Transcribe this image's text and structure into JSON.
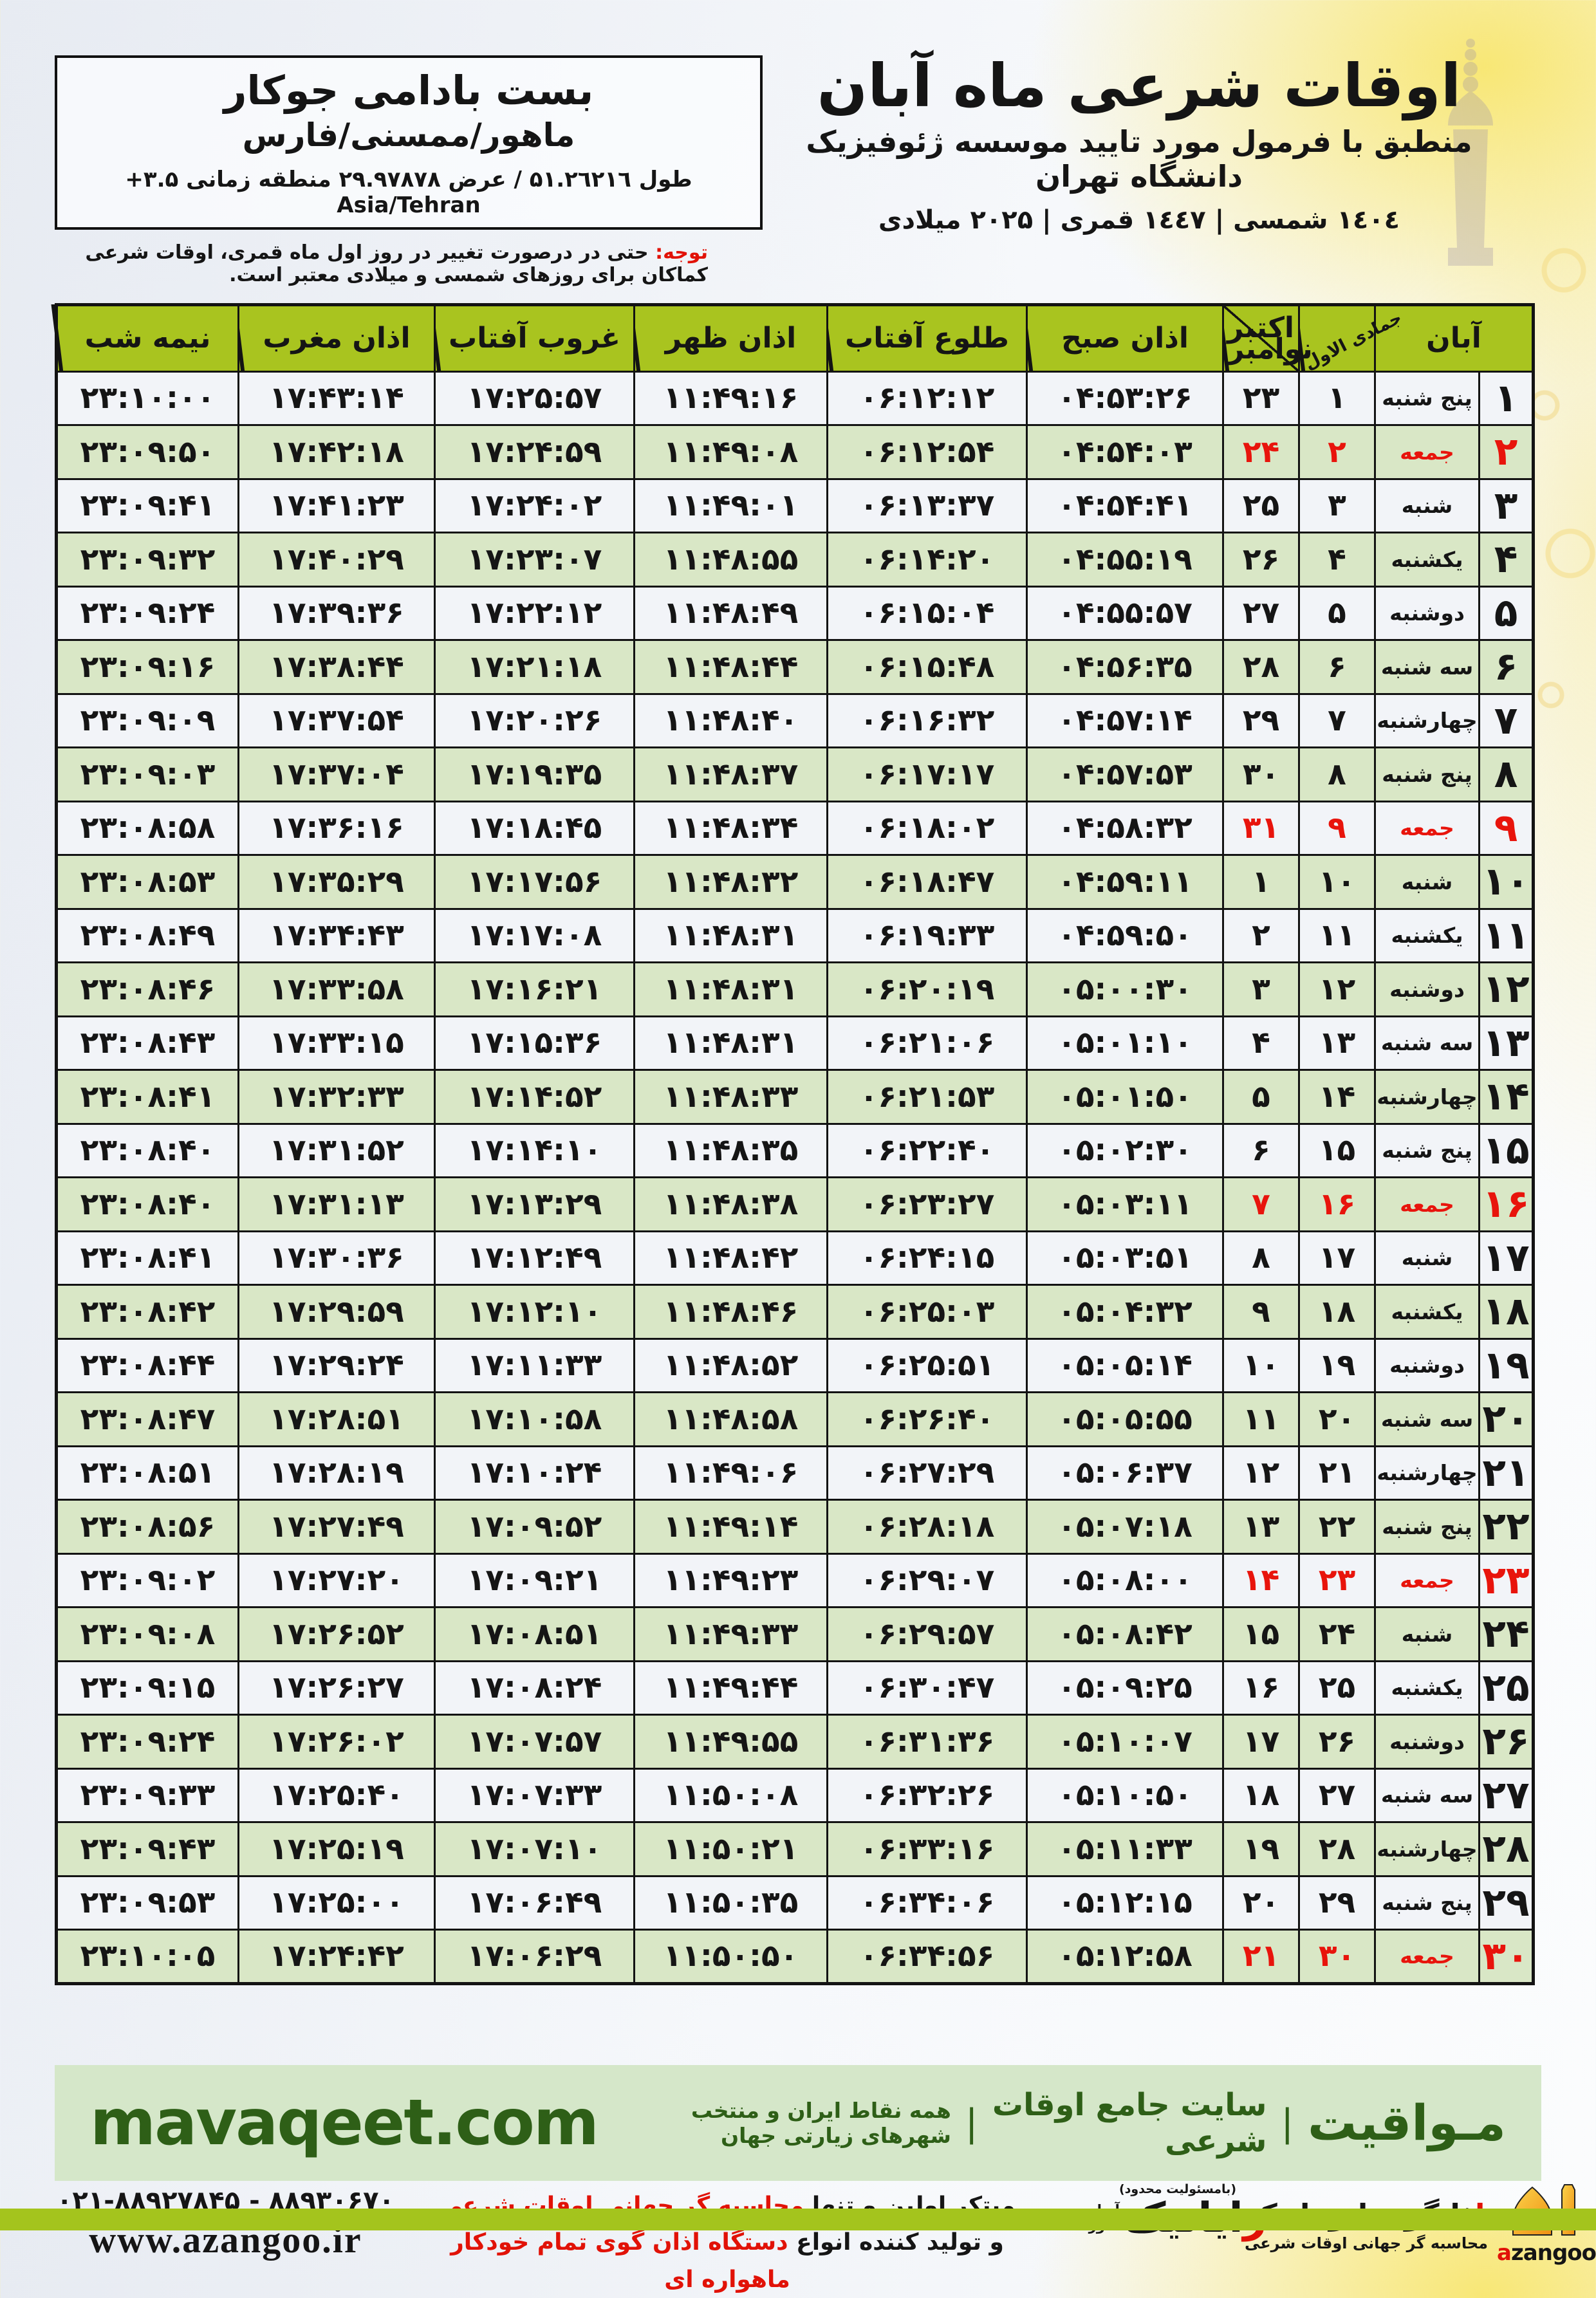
{
  "colors": {
    "header_green": "#a9c41f",
    "row_green": "#d9e7c6",
    "row_white": "#f2f4f8",
    "friday_red": "#e8140c",
    "band_green": "#d5e7c9",
    "band_text_green": "#2e5f17",
    "bottom_band": "#a4c41d",
    "accent_red": "#e11207",
    "orange_logo": "#f5a623"
  },
  "header": {
    "title": "اوقات شرعی ماه آبان",
    "subtitle": "منطبق با فرمول مورد تایید موسسه ژئوفیزیک دانشگاه تهران",
    "dates": "۱٤۰٤ شمسی | ۱٤٤۷ قمری | ۲۰۲۵ میلادی"
  },
  "location_box": {
    "name": "بست بادامی جوکار",
    "region": "ماهور/ممسنی/فارس",
    "coords": "طول ۵۱.۲٦۲۱٦ / عرض ۲۹.۹۷۸۷۸ منطقه زمانی ‎+۳.۵‎ Asia/Tehran"
  },
  "note": {
    "label": "توجه:",
    "text": "حتی در درصورت تغییر در روز اول ماه قمری، اوقات شرعی کماکان برای روزهای شمسی و میلادی معتبر است."
  },
  "table": {
    "columns": {
      "aban": "آبان",
      "jumada": "جمادی الاول",
      "october": "اکتبر",
      "november": "نوامبر",
      "fajr": "اذان صبح",
      "sunrise": "طلوع آفتاب",
      "dhuhr": "اذان ظهر",
      "sunset": "غروب آفتاب",
      "maghrib": "اذان مغرب",
      "midnight": "نیمه شب"
    },
    "rows": [
      {
        "aban": 1,
        "weekday": "پنج شنبه",
        "jumada": 1,
        "gregorian": 23,
        "fajr": "04:53:26",
        "sunrise": "06:12:12",
        "dhuhr": "11:49:16",
        "sunset": "17:25:57",
        "maghrib": "17:43:14",
        "midnight": "23:10:00",
        "friday": false
      },
      {
        "aban": 2,
        "weekday": "جمعه",
        "jumada": 2,
        "gregorian": 24,
        "fajr": "04:54:03",
        "sunrise": "06:12:54",
        "dhuhr": "11:49:08",
        "sunset": "17:24:59",
        "maghrib": "17:42:18",
        "midnight": "23:09:50",
        "friday": true
      },
      {
        "aban": 3,
        "weekday": "شنبه",
        "jumada": 3,
        "gregorian": 25,
        "fajr": "04:54:41",
        "sunrise": "06:13:37",
        "dhuhr": "11:49:01",
        "sunset": "17:24:02",
        "maghrib": "17:41:23",
        "midnight": "23:09:41",
        "friday": false
      },
      {
        "aban": 4,
        "weekday": "یکشنبه",
        "jumada": 4,
        "gregorian": 26,
        "fajr": "04:55:19",
        "sunrise": "06:14:20",
        "dhuhr": "11:48:55",
        "sunset": "17:23:07",
        "maghrib": "17:40:29",
        "midnight": "23:09:32",
        "friday": false
      },
      {
        "aban": 5,
        "weekday": "دوشنبه",
        "jumada": 5,
        "gregorian": 27,
        "fajr": "04:55:57",
        "sunrise": "06:15:04",
        "dhuhr": "11:48:49",
        "sunset": "17:22:12",
        "maghrib": "17:39:36",
        "midnight": "23:09:24",
        "friday": false
      },
      {
        "aban": 6,
        "weekday": "سه شنبه",
        "jumada": 6,
        "gregorian": 28,
        "fajr": "04:56:35",
        "sunrise": "06:15:48",
        "dhuhr": "11:48:44",
        "sunset": "17:21:18",
        "maghrib": "17:38:44",
        "midnight": "23:09:16",
        "friday": false
      },
      {
        "aban": 7,
        "weekday": "چهارشنبه",
        "jumada": 7,
        "gregorian": 29,
        "fajr": "04:57:14",
        "sunrise": "06:16:32",
        "dhuhr": "11:48:40",
        "sunset": "17:20:26",
        "maghrib": "17:37:54",
        "midnight": "23:09:09",
        "friday": false
      },
      {
        "aban": 8,
        "weekday": "پنج شنبه",
        "jumada": 8,
        "gregorian": 30,
        "fajr": "04:57:53",
        "sunrise": "06:17:17",
        "dhuhr": "11:48:37",
        "sunset": "17:19:35",
        "maghrib": "17:37:04",
        "midnight": "23:09:03",
        "friday": false
      },
      {
        "aban": 9,
        "weekday": "جمعه",
        "jumada": 9,
        "gregorian": 31,
        "fajr": "04:58:32",
        "sunrise": "06:18:02",
        "dhuhr": "11:48:34",
        "sunset": "17:18:45",
        "maghrib": "17:36:16",
        "midnight": "23:08:58",
        "friday": true
      },
      {
        "aban": 10,
        "weekday": "شنبه",
        "jumada": 10,
        "gregorian": 1,
        "fajr": "04:59:11",
        "sunrise": "06:18:47",
        "dhuhr": "11:48:32",
        "sunset": "17:17:56",
        "maghrib": "17:35:29",
        "midnight": "23:08:53",
        "friday": false
      },
      {
        "aban": 11,
        "weekday": "یکشنبه",
        "jumada": 11,
        "gregorian": 2,
        "fajr": "04:59:50",
        "sunrise": "06:19:33",
        "dhuhr": "11:48:31",
        "sunset": "17:17:08",
        "maghrib": "17:34:43",
        "midnight": "23:08:49",
        "friday": false
      },
      {
        "aban": 12,
        "weekday": "دوشنبه",
        "jumada": 12,
        "gregorian": 3,
        "fajr": "05:00:30",
        "sunrise": "06:20:19",
        "dhuhr": "11:48:31",
        "sunset": "17:16:21",
        "maghrib": "17:33:58",
        "midnight": "23:08:46",
        "friday": false
      },
      {
        "aban": 13,
        "weekday": "سه شنبه",
        "jumada": 13,
        "gregorian": 4,
        "fajr": "05:01:10",
        "sunrise": "06:21:06",
        "dhuhr": "11:48:31",
        "sunset": "17:15:36",
        "maghrib": "17:33:15",
        "midnight": "23:08:43",
        "friday": false
      },
      {
        "aban": 14,
        "weekday": "چهارشنبه",
        "jumada": 14,
        "gregorian": 5,
        "fajr": "05:01:50",
        "sunrise": "06:21:53",
        "dhuhr": "11:48:33",
        "sunset": "17:14:52",
        "maghrib": "17:32:33",
        "midnight": "23:08:41",
        "friday": false
      },
      {
        "aban": 15,
        "weekday": "پنج شنبه",
        "jumada": 15,
        "gregorian": 6,
        "fajr": "05:02:30",
        "sunrise": "06:22:40",
        "dhuhr": "11:48:35",
        "sunset": "17:14:10",
        "maghrib": "17:31:52",
        "midnight": "23:08:40",
        "friday": false
      },
      {
        "aban": 16,
        "weekday": "جمعه",
        "jumada": 16,
        "gregorian": 7,
        "fajr": "05:03:11",
        "sunrise": "06:23:27",
        "dhuhr": "11:48:38",
        "sunset": "17:13:29",
        "maghrib": "17:31:13",
        "midnight": "23:08:40",
        "friday": true
      },
      {
        "aban": 17,
        "weekday": "شنبه",
        "jumada": 17,
        "gregorian": 8,
        "fajr": "05:03:51",
        "sunrise": "06:24:15",
        "dhuhr": "11:48:42",
        "sunset": "17:12:49",
        "maghrib": "17:30:36",
        "midnight": "23:08:41",
        "friday": false
      },
      {
        "aban": 18,
        "weekday": "یکشنبه",
        "jumada": 18,
        "gregorian": 9,
        "fajr": "05:04:32",
        "sunrise": "06:25:03",
        "dhuhr": "11:48:46",
        "sunset": "17:12:10",
        "maghrib": "17:29:59",
        "midnight": "23:08:42",
        "friday": false
      },
      {
        "aban": 19,
        "weekday": "دوشنبه",
        "jumada": 19,
        "gregorian": 10,
        "fajr": "05:05:14",
        "sunrise": "06:25:51",
        "dhuhr": "11:48:52",
        "sunset": "17:11:33",
        "maghrib": "17:29:24",
        "midnight": "23:08:44",
        "friday": false
      },
      {
        "aban": 20,
        "weekday": "سه شنبه",
        "jumada": 20,
        "gregorian": 11,
        "fajr": "05:05:55",
        "sunrise": "06:26:40",
        "dhuhr": "11:48:58",
        "sunset": "17:10:58",
        "maghrib": "17:28:51",
        "midnight": "23:08:47",
        "friday": false
      },
      {
        "aban": 21,
        "weekday": "چهارشنبه",
        "jumada": 21,
        "gregorian": 12,
        "fajr": "05:06:37",
        "sunrise": "06:27:29",
        "dhuhr": "11:49:06",
        "sunset": "17:10:24",
        "maghrib": "17:28:19",
        "midnight": "23:08:51",
        "friday": false
      },
      {
        "aban": 22,
        "weekday": "پنج شنبه",
        "jumada": 22,
        "gregorian": 13,
        "fajr": "05:07:18",
        "sunrise": "06:28:18",
        "dhuhr": "11:49:14",
        "sunset": "17:09:52",
        "maghrib": "17:27:49",
        "midnight": "23:08:56",
        "friday": false
      },
      {
        "aban": 23,
        "weekday": "جمعه",
        "jumada": 23,
        "gregorian": 14,
        "fajr": "05:08:00",
        "sunrise": "06:29:07",
        "dhuhr": "11:49:23",
        "sunset": "17:09:21",
        "maghrib": "17:27:20",
        "midnight": "23:09:02",
        "friday": true
      },
      {
        "aban": 24,
        "weekday": "شنبه",
        "jumada": 24,
        "gregorian": 15,
        "fajr": "05:08:42",
        "sunrise": "06:29:57",
        "dhuhr": "11:49:33",
        "sunset": "17:08:51",
        "maghrib": "17:26:52",
        "midnight": "23:09:08",
        "friday": false
      },
      {
        "aban": 25,
        "weekday": "یکشنبه",
        "jumada": 25,
        "gregorian": 16,
        "fajr": "05:09:25",
        "sunrise": "06:30:47",
        "dhuhr": "11:49:44",
        "sunset": "17:08:24",
        "maghrib": "17:26:27",
        "midnight": "23:09:15",
        "friday": false
      },
      {
        "aban": 26,
        "weekday": "دوشنبه",
        "jumada": 26,
        "gregorian": 17,
        "fajr": "05:10:07",
        "sunrise": "06:31:36",
        "dhuhr": "11:49:55",
        "sunset": "17:07:57",
        "maghrib": "17:26:02",
        "midnight": "23:09:24",
        "friday": false
      },
      {
        "aban": 27,
        "weekday": "سه شنبه",
        "jumada": 27,
        "gregorian": 18,
        "fajr": "05:10:50",
        "sunrise": "06:32:26",
        "dhuhr": "11:50:08",
        "sunset": "17:07:33",
        "maghrib": "17:25:40",
        "midnight": "23:09:33",
        "friday": false
      },
      {
        "aban": 28,
        "weekday": "چهارشنبه",
        "jumada": 28,
        "gregorian": 19,
        "fajr": "05:11:33",
        "sunrise": "06:33:16",
        "dhuhr": "11:50:21",
        "sunset": "17:07:10",
        "maghrib": "17:25:19",
        "midnight": "23:09:43",
        "friday": false
      },
      {
        "aban": 29,
        "weekday": "پنج شنبه",
        "jumada": 29,
        "gregorian": 20,
        "fajr": "05:12:15",
        "sunrise": "06:34:06",
        "dhuhr": "11:50:35",
        "sunset": "17:06:49",
        "maghrib": "17:25:00",
        "midnight": "23:09:53",
        "friday": false
      },
      {
        "aban": 30,
        "weekday": "جمعه",
        "jumada": 30,
        "gregorian": 21,
        "fajr": "05:12:58",
        "sunrise": "06:34:56",
        "dhuhr": "11:50:50",
        "sunset": "17:06:29",
        "maghrib": "17:24:42",
        "midnight": "23:10:05",
        "friday": true
      }
    ]
  },
  "mavaqeet": {
    "url": "mavaqeet.com",
    "brand": "مـواقیت",
    "sep": "|",
    "tagline1": "سایت جامع اوقات شرعی",
    "tagline2": "همه نقاط ایران و منتخب شهرهای زیارتی جهان"
  },
  "footer": {
    "slogan1_black": "مبتکر اولین و تنها ",
    "slogan1_red": "محاسبه گر جهانی اوقات شرعی",
    "slogan2_black": "و تولید کننده انواع ",
    "slogan2_red": "دستگاه اذان گوی تمام خودکار ماهواره ای",
    "rayanik_note": "(بامسئولیت محدود)",
    "rayanik_r": "ر",
    "rayanik_rest": "ایانیک",
    "rayanik_sub_top": "آریا",
    "rayanik_sub_bottom": "خاور",
    "azangoo_title_a": "ا",
    "azangoo_title_rest": "ذانگوی اتوماتیک",
    "azangoo_sub": "محاسبه گر جهانی اوقات شرعی",
    "azangoo_latin_a": "a",
    "azangoo_latin_rest": "zangoo",
    "phone": "۰۲۱-۸۸۹۲۷۸۴۵ - ۸۸۹۳۰۶۷۰",
    "website": "www.azangoo.ir"
  }
}
